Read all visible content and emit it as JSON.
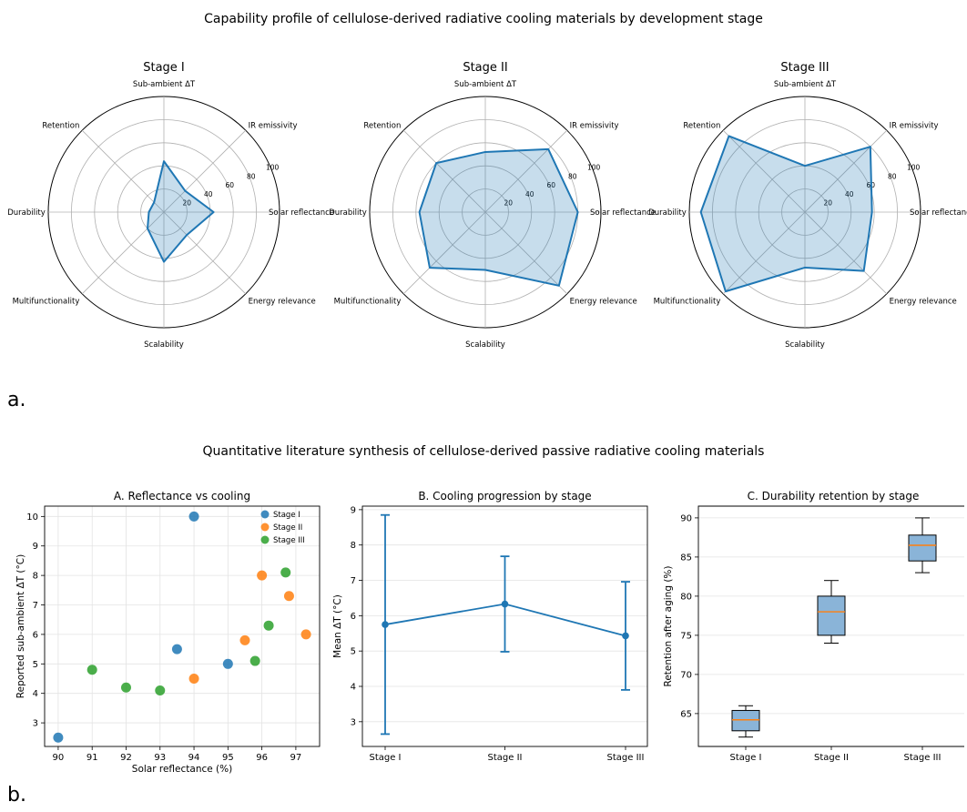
{
  "figure": {
    "panel_a_label": "a.",
    "panel_b_label": "b."
  },
  "chart_data": [
    {
      "type": "radar",
      "group_title": "Capability profile of cellulose-derived radiative cooling materials by development stage",
      "title": "Stage I",
      "axes": [
        "Solar reflectance",
        "IR emissivity",
        "Sub-ambient ΔT",
        "Retention",
        "Durability",
        "Multifunctionality",
        "Scalability",
        "Energy relevance"
      ],
      "values": [
        43,
        26,
        44,
        12,
        13,
        20,
        43,
        28
      ],
      "rlim": [
        0,
        100
      ],
      "rticks": [
        20,
        40,
        60,
        80,
        100
      ],
      "color": "#1f77b4",
      "grid": true
    },
    {
      "type": "radar",
      "title": "Stage II",
      "axes": [
        "Solar reflectance",
        "IR emissivity",
        "Sub-ambient ΔT",
        "Retention",
        "Durability",
        "Multifunctionality",
        "Scalability",
        "Energy relevance"
      ],
      "values": [
        80,
        77,
        52,
        60,
        57,
        68,
        50,
        90
      ],
      "rlim": [
        0,
        100
      ],
      "rticks": [
        20,
        40,
        60,
        80,
        100
      ],
      "color": "#1f77b4",
      "grid": true
    },
    {
      "type": "radar",
      "title": "Stage III",
      "axes": [
        "Solar reflectance",
        "IR emissivity",
        "Sub-ambient ΔT",
        "Retention",
        "Durability",
        "Multifunctionality",
        "Scalability",
        "Energy relevance"
      ],
      "values": [
        58,
        80,
        40,
        93,
        90,
        97,
        48,
        72
      ],
      "rlim": [
        0,
        100
      ],
      "rticks": [
        20,
        40,
        60,
        80,
        100
      ],
      "color": "#1f77b4",
      "grid": true
    },
    {
      "type": "scatter",
      "group_title": "Quantitative literature synthesis of cellulose-derived passive radiative cooling materials",
      "title": "A. Reflectance vs cooling",
      "xlabel": "Solar reflectance (%)",
      "ylabel": "Reported sub-ambient ΔT (°C)",
      "xlim": [
        89.6,
        97.7
      ],
      "ylim": [
        2.2,
        10.35
      ],
      "xticks": [
        "90",
        "91",
        "92",
        "93",
        "94",
        "95",
        "96",
        "97"
      ],
      "yticks": [
        "3",
        "4",
        "5",
        "6",
        "7",
        "8",
        "9",
        "10"
      ],
      "legend_position": "top-right",
      "grid": true,
      "series": [
        {
          "name": "Stage I",
          "color": "#1f77b4",
          "x": [
            90,
            93.5,
            94,
            95
          ],
          "y": [
            2.5,
            5.5,
            10,
            5
          ]
        },
        {
          "name": "Stage II",
          "color": "#ff7f0e",
          "x": [
            94,
            95.5,
            96,
            96.8,
            97.3
          ],
          "y": [
            4.5,
            5.8,
            8,
            7.3,
            6
          ]
        },
        {
          "name": "Stage III",
          "color": "#2ca02c",
          "x": [
            91,
            92,
            93,
            95.8,
            96.2,
            96.7
          ],
          "y": [
            4.8,
            4.2,
            4.1,
            5.1,
            6.3,
            8.1
          ]
        }
      ]
    },
    {
      "type": "line",
      "title": "B. Cooling progression by stage",
      "ylabel": "Mean ΔT (°C)",
      "categories": [
        "Stage I",
        "Stage II",
        "Stage III"
      ],
      "values": [
        5.75,
        6.33,
        5.43
      ],
      "error": [
        3.1,
        1.35,
        1.53
      ],
      "ylim": [
        2.3,
        9.1
      ],
      "yticks": [
        "3",
        "4",
        "5",
        "6",
        "7",
        "8",
        "9"
      ],
      "color": "#1f77b4",
      "grid": "y"
    },
    {
      "type": "box",
      "title": "C. Durability retention by stage",
      "ylabel": "Retention after aging (%)",
      "categories": [
        "Stage I",
        "Stage II",
        "Stage III"
      ],
      "boxes": [
        {
          "whislo": 62,
          "q1": 62.8,
          "median": 64.2,
          "q3": 65.4,
          "whishi": 66
        },
        {
          "whislo": 74,
          "q1": 75,
          "median": 78,
          "q3": 80,
          "whishi": 82
        },
        {
          "whislo": 83,
          "q1": 84.5,
          "median": 86.5,
          "q3": 87.8,
          "whishi": 90
        }
      ],
      "ylim": [
        60.8,
        91.5
      ],
      "yticks": [
        "65",
        "70",
        "75",
        "80",
        "85",
        "90"
      ],
      "box_color": "#8ab4d8",
      "median_color": "#ff7f0e",
      "grid": "y"
    }
  ]
}
